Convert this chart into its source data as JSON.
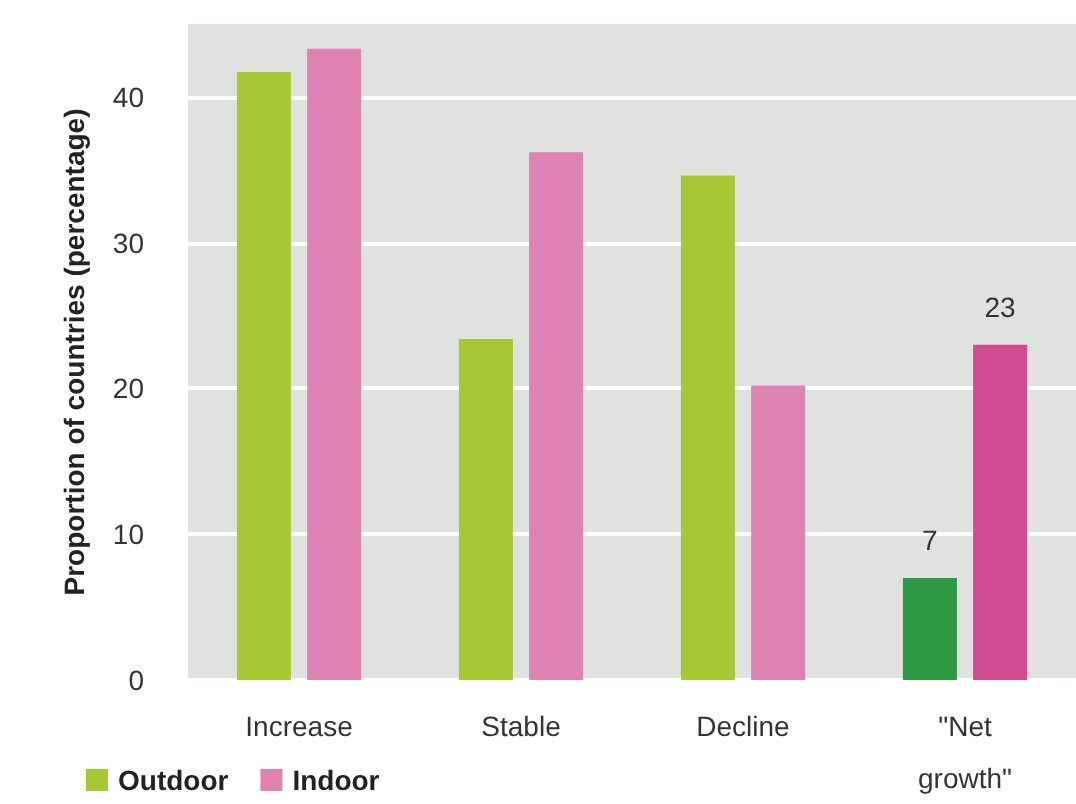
{
  "chart_data": {
    "type": "bar",
    "ylabel": "Proportion of countries (percentage)",
    "categories": [
      "Increase",
      "Stable",
      "Decline",
      "\"Net growth\""
    ],
    "series": [
      {
        "name": "Outdoor",
        "color": "#a5c935",
        "colors": [
          "#a5c935",
          "#a5c935",
          "#a5c935",
          "#2e9a46"
        ],
        "values": [
          41.7,
          23.4,
          34.6,
          7
        ],
        "value_labels": [
          null,
          null,
          null,
          "7"
        ]
      },
      {
        "name": "Indoor",
        "color": "#de82b2",
        "colors": [
          "#de82b2",
          "#de82b2",
          "#de82b2",
          "#d14b91"
        ],
        "values": [
          43.3,
          36.2,
          20.2,
          23
        ],
        "value_labels": [
          null,
          null,
          null,
          "23"
        ]
      }
    ],
    "ylim": [
      0,
      45
    ],
    "yticks": [
      0,
      10,
      20,
      30,
      40
    ],
    "grid": "y",
    "legend": "bottom left"
  }
}
